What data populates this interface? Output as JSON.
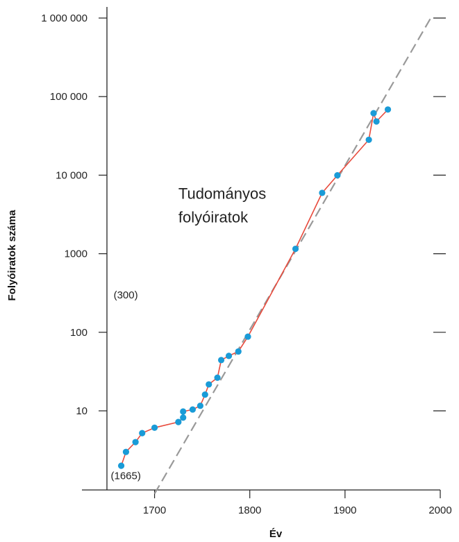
{
  "chart_data": {
    "type": "line",
    "title": "",
    "xlabel": "Év",
    "ylabel": "Folyóiratok száma",
    "xlim": [
      1650,
      2000
    ],
    "ylim": [
      1,
      1000000
    ],
    "y_scale": "log",
    "grid": false,
    "x_ticks": [
      1700,
      1800,
      1900,
      2000
    ],
    "x_tick_labels": [
      "1700",
      "1800",
      "1900",
      "2000"
    ],
    "y_ticks": [
      10,
      100,
      1000,
      10000,
      100000,
      1000000
    ],
    "y_tick_labels": [
      "10",
      "100",
      "1000",
      "10 000",
      "100 000",
      "1 000 000"
    ],
    "annotations": [
      {
        "lines": [
          "Tudományos",
          "folyóiratok"
        ],
        "x": 1725,
        "y": 5000
      },
      {
        "text": "(300)",
        "x": 1657,
        "y": 300
      },
      {
        "text": "(1665)",
        "x": 1654,
        "y": 1.5
      }
    ],
    "series": [
      {
        "color": "#e84a3c",
        "marker_color": "#1a9bd7",
        "x": [
          1665,
          1670,
          1680,
          1687,
          1700,
          1725,
          1730,
          1730,
          1740,
          1748,
          1753,
          1757,
          1766,
          1770,
          1778,
          1788,
          1798,
          1848,
          1876,
          1892,
          1925,
          1930,
          1933,
          1945
        ],
        "y": [
          2,
          3,
          4,
          5.2,
          6.1,
          7.2,
          8.2,
          9.8,
          10.4,
          11.6,
          16.1,
          21.7,
          26.4,
          44.3,
          50,
          57,
          88,
          1154,
          5950,
          9950,
          28200,
          61500,
          48300,
          68500
        ]
      },
      {
        "style": "dashed",
        "color": "#999999",
        "x": [
          1700,
          1990
        ],
        "y": [
          0.88,
          1000000
        ]
      }
    ]
  }
}
